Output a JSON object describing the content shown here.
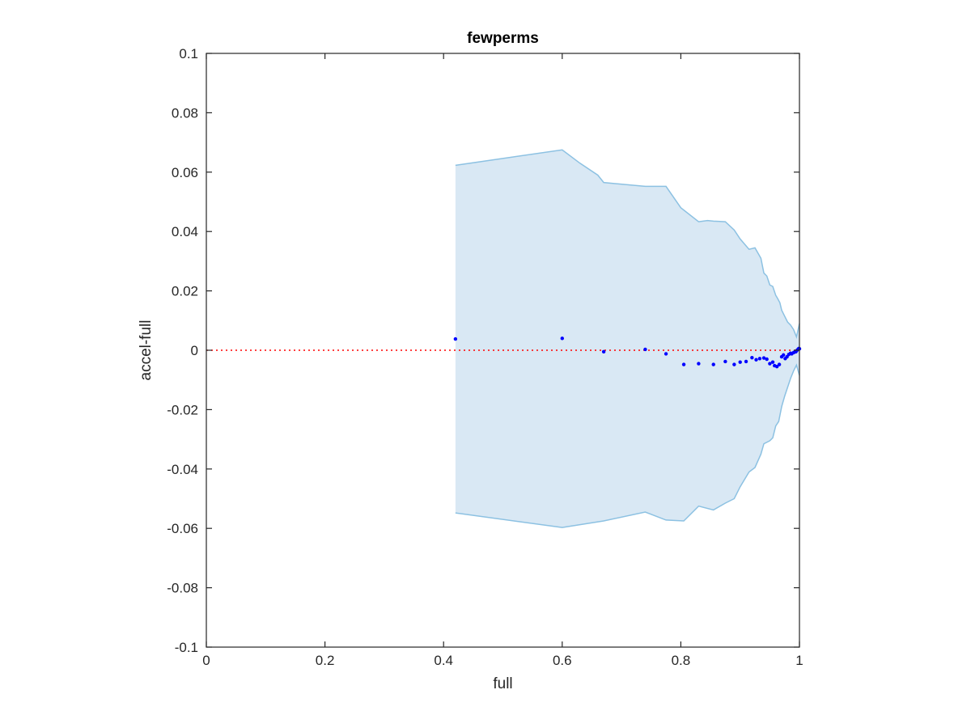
{
  "chart_data": {
    "type": "scatter",
    "title": "fewperms",
    "xlabel": "full",
    "ylabel": "accel-full",
    "xlim": [
      0,
      1
    ],
    "ylim": [
      -0.1,
      0.1
    ],
    "x_ticks": [
      0,
      0.2,
      0.4,
      0.6,
      0.8,
      1
    ],
    "x_tick_labels": [
      "0",
      "0.2",
      "0.4",
      "0.6",
      "0.8",
      "1"
    ],
    "y_ticks": [
      -0.1,
      -0.08,
      -0.06,
      -0.04,
      -0.02,
      0,
      0.02,
      0.04,
      0.06,
      0.08,
      0.1
    ],
    "y_tick_labels": [
      "-0.1",
      "-0.08",
      "-0.06",
      "-0.04",
      "-0.02",
      "0",
      "0.02",
      "0.04",
      "0.06",
      "0.08",
      "0.1"
    ],
    "grid": false,
    "colors": {
      "points": "#0000ff",
      "band_fill": "#d9e8f4",
      "band_edge": "#8cc1e2",
      "zero_line": "#ff0000"
    },
    "reference_line": {
      "y": 0,
      "style": "dotted"
    },
    "band": {
      "upper": [
        [
          0.42,
          0.0623
        ],
        [
          0.6,
          0.0675
        ],
        [
          0.63,
          0.063
        ],
        [
          0.66,
          0.059
        ],
        [
          0.67,
          0.0565
        ],
        [
          0.74,
          0.0552
        ],
        [
          0.775,
          0.0552
        ],
        [
          0.8,
          0.048
        ],
        [
          0.83,
          0.0433
        ],
        [
          0.845,
          0.0437
        ],
        [
          0.855,
          0.0435
        ],
        [
          0.875,
          0.0433
        ],
        [
          0.89,
          0.0405
        ],
        [
          0.9,
          0.0375
        ],
        [
          0.915,
          0.034
        ],
        [
          0.925,
          0.0345
        ],
        [
          0.935,
          0.031
        ],
        [
          0.94,
          0.026
        ],
        [
          0.945,
          0.025
        ],
        [
          0.95,
          0.022
        ],
        [
          0.955,
          0.0215
        ],
        [
          0.96,
          0.0185
        ],
        [
          0.963,
          0.0175
        ],
        [
          0.967,
          0.016
        ],
        [
          0.97,
          0.0135
        ],
        [
          0.975,
          0.0115
        ],
        [
          0.98,
          0.0095
        ],
        [
          0.985,
          0.0085
        ],
        [
          0.99,
          0.007
        ],
        [
          0.995,
          0.0045
        ],
        [
          1.0,
          0.009
        ]
      ],
      "lower": [
        [
          0.42,
          -0.0548
        ],
        [
          0.6,
          -0.0597
        ],
        [
          0.67,
          -0.0575
        ],
        [
          0.74,
          -0.0545
        ],
        [
          0.775,
          -0.0572
        ],
        [
          0.805,
          -0.0575
        ],
        [
          0.83,
          -0.0525
        ],
        [
          0.855,
          -0.0538
        ],
        [
          0.875,
          -0.0515
        ],
        [
          0.89,
          -0.05
        ],
        [
          0.9,
          -0.046
        ],
        [
          0.915,
          -0.041
        ],
        [
          0.925,
          -0.0395
        ],
        [
          0.935,
          -0.035
        ],
        [
          0.94,
          -0.0315
        ],
        [
          0.95,
          -0.0305
        ],
        [
          0.955,
          -0.0295
        ],
        [
          0.96,
          -0.0255
        ],
        [
          0.965,
          -0.024
        ],
        [
          0.97,
          -0.019
        ],
        [
          0.975,
          -0.0155
        ],
        [
          0.98,
          -0.0125
        ],
        [
          0.985,
          -0.0095
        ],
        [
          0.99,
          -0.007
        ],
        [
          0.995,
          -0.005
        ],
        [
          1.0,
          -0.0085
        ]
      ]
    },
    "points": [
      [
        0.42,
        0.0038
      ],
      [
        0.6,
        0.004
      ],
      [
        0.67,
        -0.0005
      ],
      [
        0.74,
        0.0003
      ],
      [
        0.775,
        -0.0012
      ],
      [
        0.805,
        -0.0048
      ],
      [
        0.83,
        -0.0045
      ],
      [
        0.855,
        -0.0048
      ],
      [
        0.875,
        -0.0038
      ],
      [
        0.89,
        -0.0048
      ],
      [
        0.9,
        -0.004
      ],
      [
        0.91,
        -0.0038
      ],
      [
        0.92,
        -0.0025
      ],
      [
        0.927,
        -0.0032
      ],
      [
        0.933,
        -0.0028
      ],
      [
        0.94,
        -0.0026
      ],
      [
        0.945,
        -0.003
      ],
      [
        0.95,
        -0.0045
      ],
      [
        0.955,
        -0.004
      ],
      [
        0.958,
        -0.0052
      ],
      [
        0.962,
        -0.0055
      ],
      [
        0.966,
        -0.0048
      ],
      [
        0.97,
        -0.0022
      ],
      [
        0.973,
        -0.0016
      ],
      [
        0.976,
        -0.0028
      ],
      [
        0.979,
        -0.0022
      ],
      [
        0.982,
        -0.0014
      ],
      [
        0.985,
        -0.001
      ],
      [
        0.987,
        -0.0012
      ],
      [
        0.99,
        -0.0008
      ],
      [
        0.992,
        -0.0006
      ],
      [
        0.994,
        -0.0005
      ],
      [
        0.996,
        0.0
      ],
      [
        0.998,
        0.0004
      ],
      [
        0.999,
        0.0006
      ],
      [
        1.0,
        0.0005
      ]
    ]
  }
}
